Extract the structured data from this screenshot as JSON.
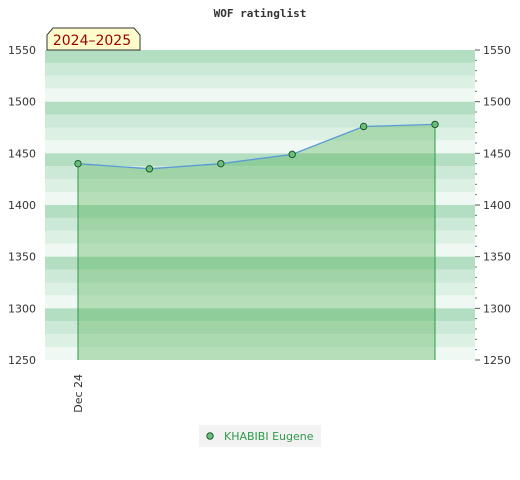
{
  "chart_data": {
    "type": "line",
    "title": "WOF ratinglist",
    "season_label": "2024–2025",
    "ylim": [
      1250,
      1550
    ],
    "y_ticks": [
      1250,
      1300,
      1350,
      1400,
      1450,
      1500,
      1550
    ],
    "x_ticks": [
      "Dec 24"
    ],
    "series": [
      {
        "name": "KHABIBI Eugene",
        "x": [
          0,
          1,
          2,
          3,
          4,
          5
        ],
        "values": [
          1440,
          1435,
          1440,
          1449,
          1476,
          1478
        ]
      }
    ],
    "legend": "bottom",
    "grid": true,
    "colors": {
      "band_dark": "#b3dec2",
      "band_mid": "#cce8d6",
      "band_light": "#ddf0e4",
      "band_lightest": "#eff8f2",
      "fill": "#4caf50",
      "line": "#5b9bd5",
      "marker": "#6abf7b",
      "vertical": "#2f9a4a",
      "season_bg": "#fffccc"
    }
  }
}
